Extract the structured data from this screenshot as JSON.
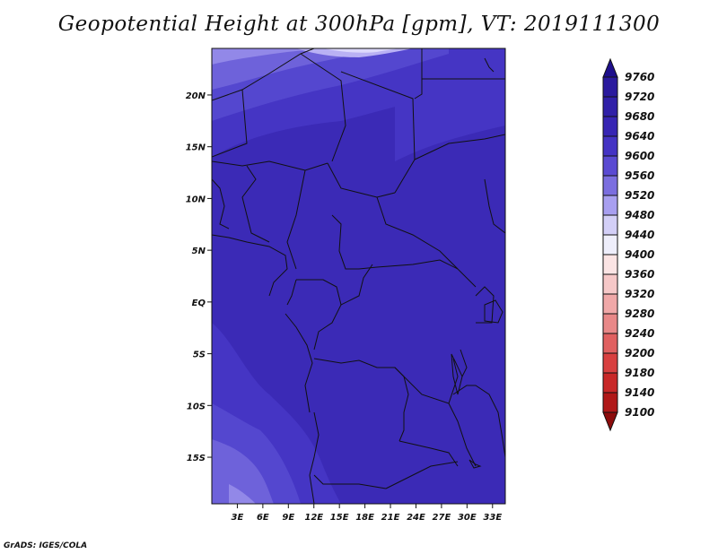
{
  "title": "Geopotential Height at 300hPa [gpm], VT: 2019111300",
  "credit": "GrADS: IGES/COLA",
  "map": {
    "lon_range": [
      0,
      34.5
    ],
    "lat_range": [
      -19.5,
      24.5
    ],
    "lon_ticks": [
      "3E",
      "6E",
      "9E",
      "12E",
      "15E",
      "18E",
      "21E",
      "24E",
      "27E",
      "30E",
      "33E"
    ],
    "lat_ticks": [
      "20N",
      "15N",
      "10N",
      "5N",
      "EQ",
      "5S",
      "10S",
      "15S"
    ]
  },
  "colorbar": {
    "levels": [
      "9760",
      "9720",
      "9680",
      "9640",
      "9600",
      "9560",
      "9520",
      "9480",
      "9440",
      "9400",
      "9360",
      "9320",
      "9280",
      "9240",
      "9200",
      "9180",
      "9140",
      "9100"
    ],
    "colors": [
      "#1e0f8c",
      "#2a1a9e",
      "#3020a8",
      "#3725b4",
      "#4433c4",
      "#5a4ad2",
      "#7b6edf",
      "#a89ff0",
      "#d3cff7",
      "#eeeefb",
      "#fbe4e4",
      "#f6c8c8",
      "#f0a8a8",
      "#e88888",
      "#e06060",
      "#d84040",
      "#c82828",
      "#b01818",
      "#8c0c0c"
    ]
  },
  "field_colors": {
    "c9680": "#3b2ab6",
    "c9640": "#4535c4",
    "c9600": "#5447cf",
    "c9560": "#6e62da",
    "c9520": "#9288e8",
    "c9480": "#b9b1f4",
    "c9440": "#dcd8fb"
  }
}
